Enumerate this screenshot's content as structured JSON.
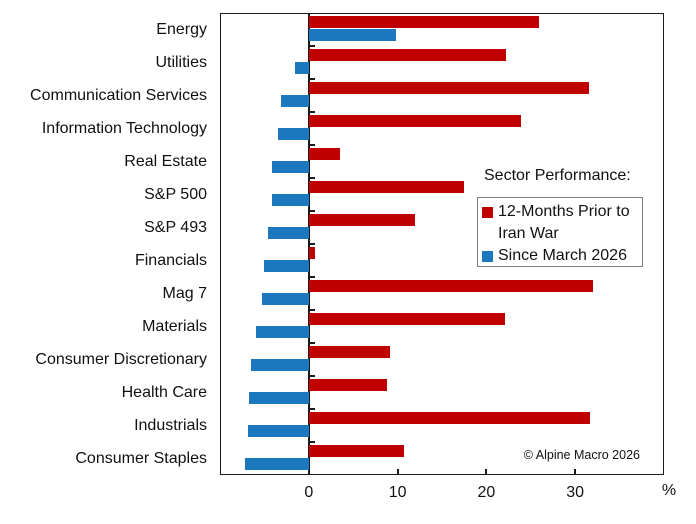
{
  "chart_data": {
    "type": "bar",
    "orientation": "horizontal",
    "categories": [
      "Energy",
      "Utilities",
      "Communication Services",
      "Information Technology",
      "Real Estate",
      "S&P 500",
      "S&P 493",
      "Financials",
      "Mag 7",
      "Materials",
      "Consumer Discretionary",
      "Health Care",
      "Industrials",
      "Consumer Staples"
    ],
    "series": [
      {
        "name": "12-Months Prior to Iran War",
        "key": "prior-iran-war",
        "color": "#c00000",
        "values": [
          25.9,
          22.2,
          31.6,
          23.9,
          3.5,
          17.5,
          12.0,
          0.7,
          32.0,
          22.1,
          9.2,
          8.8,
          31.7,
          10.7
        ]
      },
      {
        "name": "Since March 2026",
        "key": "since-march-2026",
        "color": "#1b78be",
        "values": [
          9.8,
          -1.6,
          -3.1,
          -3.5,
          -4.1,
          -4.2,
          -4.6,
          -5.0,
          -5.3,
          -5.9,
          -6.5,
          -6.7,
          -6.9,
          -7.2
        ]
      }
    ],
    "legend": {
      "title": "Sector Performance:",
      "entries": [
        {
          "label": "12-Months Prior to Iran War",
          "lines": [
            "12-Months Prior to",
            "Iran War"
          ],
          "color": "#c00000"
        },
        {
          "label": "Since March 2026",
          "lines": [
            "Since March 2026"
          ],
          "color": "#1b78be"
        }
      ],
      "position": "center-right"
    },
    "xlim": [
      -10,
      40
    ],
    "xticks": [
      0,
      10,
      20,
      30
    ],
    "x_unit_label": "%",
    "grid": false,
    "annotation": "© Alpine Macro 2026",
    "axis_color": "#1a1a1a"
  }
}
